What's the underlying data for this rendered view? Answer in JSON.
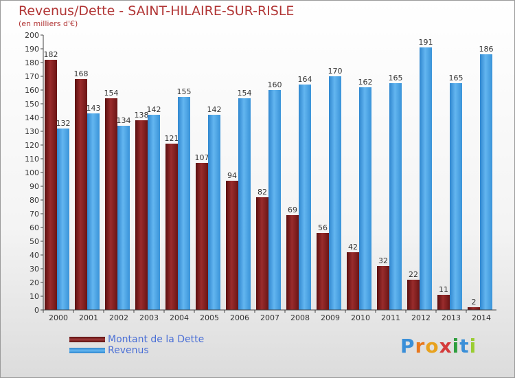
{
  "header": {
    "title": "Revenus/Dette - SAINT-HILAIRE-SUR-RISLE",
    "subtitle": "(en milliers d'€)"
  },
  "brand": {
    "text": "Proxiti",
    "letters": [
      {
        "ch": "P",
        "color": "#3a8fd8"
      },
      {
        "ch": "r",
        "color": "#e8781e"
      },
      {
        "ch": "o",
        "color": "#e8a21e"
      },
      {
        "ch": "x",
        "color": "#d43a3a"
      },
      {
        "ch": "i",
        "color": "#2f9e3e"
      },
      {
        "ch": "t",
        "color": "#3a8fd8"
      },
      {
        "ch": "i",
        "color": "#9acd32"
      }
    ]
  },
  "chart_data": {
    "type": "bar",
    "title": "Revenus/Dette - SAINT-HILAIRE-SUR-RISLE",
    "subtitle": "(en milliers d'€)",
    "xlabel": "",
    "ylabel": "",
    "categories": [
      "2000",
      "2001",
      "2002",
      "2003",
      "2004",
      "2005",
      "2006",
      "2007",
      "2008",
      "2009",
      "2010",
      "2011",
      "2012",
      "2013",
      "2014"
    ],
    "series": [
      {
        "name": "Montant de la Dette",
        "color": "#7a1c1c",
        "values": [
          182,
          168,
          154,
          138,
          121,
          107,
          94,
          82,
          69,
          56,
          42,
          32,
          22,
          11,
          2
        ]
      },
      {
        "name": "Revenus",
        "color": "#4aa3e6",
        "values": [
          132,
          143,
          134,
          142,
          155,
          142,
          154,
          160,
          164,
          170,
          162,
          165,
          191,
          165,
          186
        ]
      }
    ],
    "ylim": [
      0,
      200
    ],
    "ytick_step": 10,
    "grid": false,
    "legend_position": "bottom-left"
  }
}
